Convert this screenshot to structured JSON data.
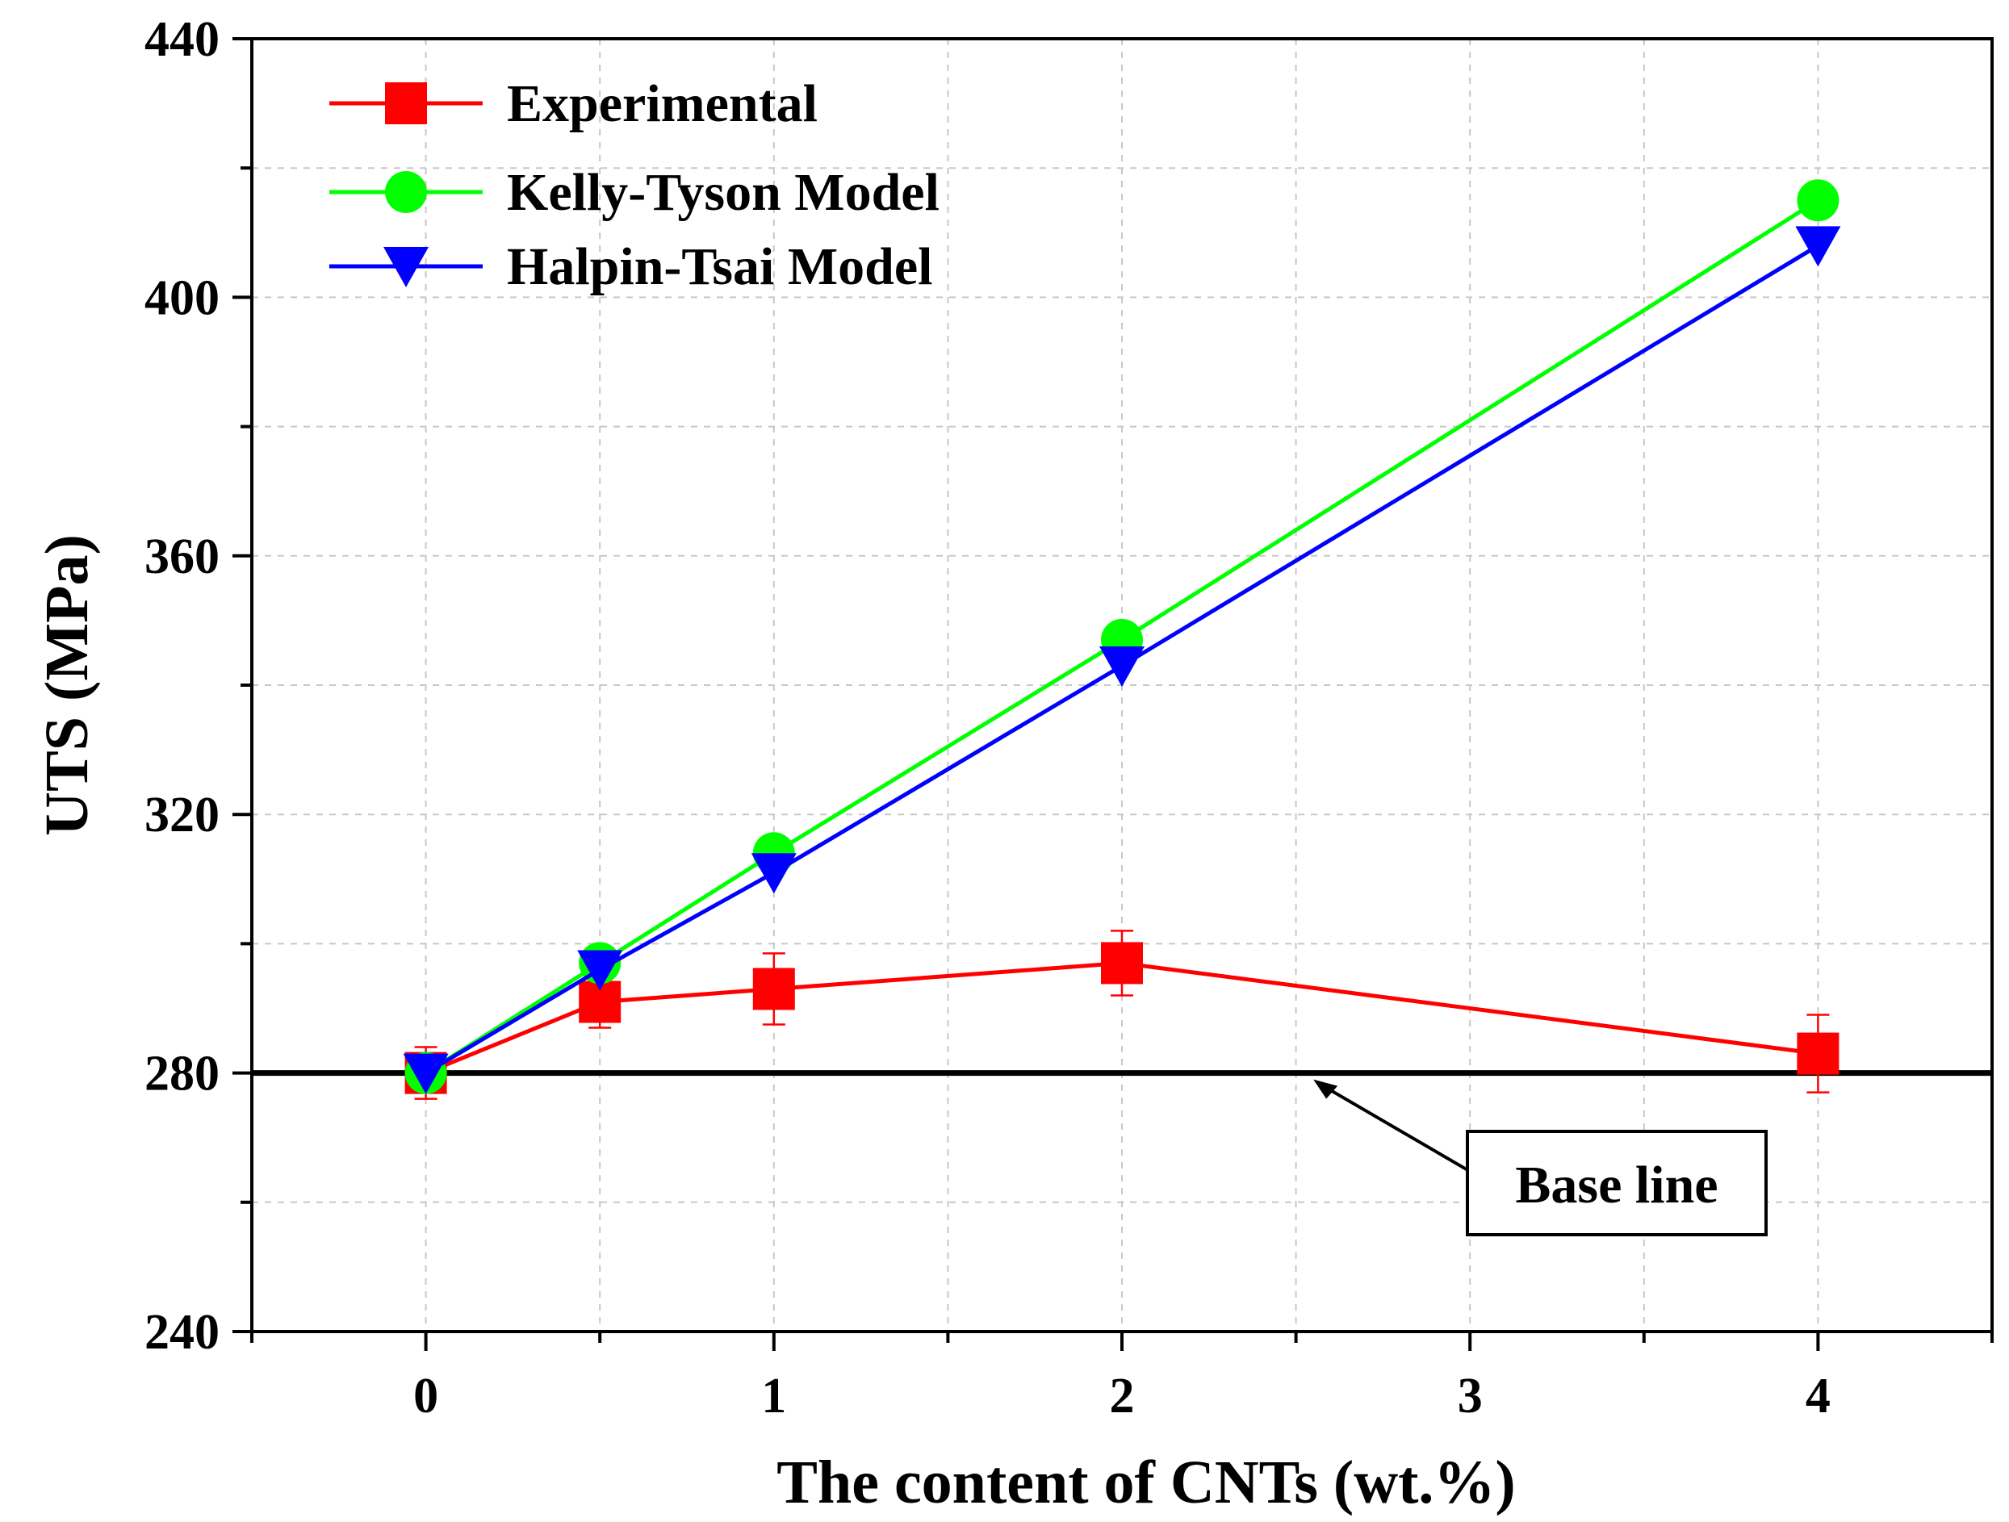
{
  "chart_data": {
    "type": "line",
    "xlabel": "The content of CNTs (wt.%)",
    "ylabel": "UTS (MPa)",
    "xlim": [
      -0.5,
      4.5
    ],
    "ylim": [
      240,
      440
    ],
    "xticks": [
      0,
      1,
      2,
      3,
      4
    ],
    "yticks": [
      240,
      280,
      320,
      360,
      400,
      440
    ],
    "grid": true,
    "legend_position": "top-left",
    "series": [
      {
        "name": "Experimental",
        "color": "#ff0000",
        "marker": "square",
        "x": [
          0,
          0.5,
          1,
          2,
          4
        ],
        "values": [
          280,
          291,
          293,
          297,
          283
        ],
        "error": [
          4,
          4,
          5.5,
          5,
          6
        ]
      },
      {
        "name": "Kelly-Tyson Model",
        "color": "#00ff00",
        "marker": "circle",
        "x": [
          0,
          0.5,
          1,
          2,
          4
        ],
        "values": [
          280,
          297,
          314,
          347,
          415
        ]
      },
      {
        "name": "Halpin-Tsai Model",
        "color": "#0000ff",
        "marker": "triangle-down",
        "x": [
          0,
          0.5,
          1,
          2,
          4
        ],
        "values": [
          280,
          296,
          311,
          343,
          408
        ]
      }
    ],
    "baseline": {
      "value": 280,
      "label": "Base line",
      "arrow_target_x": 2.55
    }
  }
}
